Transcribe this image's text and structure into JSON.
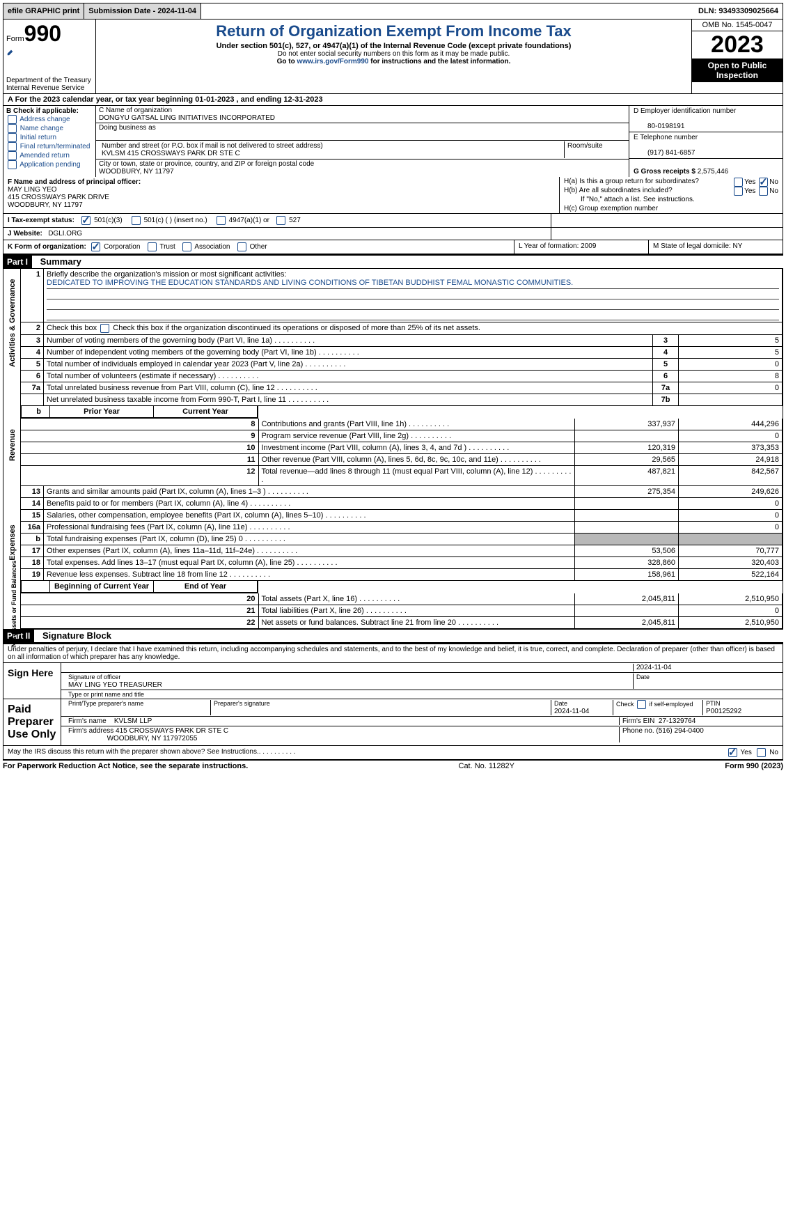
{
  "topbar": {
    "efile": "efile GRAPHIC print",
    "submission": "Submission Date - 2024-11-04",
    "dln": "DLN: 93493309025664"
  },
  "header": {
    "form_label": "Form",
    "form_no": "990",
    "dept": "Department of the Treasury",
    "irs": "Internal Revenue Service",
    "title": "Return of Organization Exempt From Income Tax",
    "sub": "Under section 501(c), 527, or 4947(a)(1) of the Internal Revenue Code (except private foundations)",
    "note1": "Do not enter social security numbers on this form as it may be made public.",
    "note2_pre": "Go to ",
    "note2_link": "www.irs.gov/Form990",
    "note2_post": " for instructions and the latest information.",
    "omb": "OMB No. 1545-0047",
    "year": "2023",
    "pub": "Open to Public Inspection"
  },
  "rowA": "A  For the 2023 calendar year, or tax year beginning 01-01-2023   , and ending 12-31-2023",
  "boxB": {
    "title": "B Check if applicable:",
    "opts": [
      "Address change",
      "Name change",
      "Initial return",
      "Final return/terminated",
      "Amended return",
      "Application pending"
    ]
  },
  "boxC": {
    "name_lbl": "C Name of organization",
    "name": "DONGYU GATSAL LING INITIATIVES INCORPORATED",
    "dba_lbl": "Doing business as",
    "dba": "",
    "street_lbl": "Number and street (or P.O. box if mail is not delivered to street address)",
    "street": "KVLSM 415 CROSSWAYS PARK DR STE C",
    "room_lbl": "Room/suite",
    "city_lbl": "City or town, state or province, country, and ZIP or foreign postal code",
    "city": "WOODBURY, NY  11797"
  },
  "boxD": {
    "lbl": "D Employer identification number",
    "val": "80-0198191"
  },
  "boxE": {
    "lbl": "E Telephone number",
    "val": "(917) 841-6857"
  },
  "boxG": {
    "lbl": "G Gross receipts $",
    "val": "2,575,446"
  },
  "boxF": {
    "lbl": "F  Name and address of principal officer:",
    "name": "MAY LING YEO",
    "addr1": "415 CROSSWAYS PARK DRIVE",
    "addr2": "WOODBURY, NY  11797"
  },
  "boxH": {
    "a": "H(a)  Is this a group return for subordinates?",
    "b": "H(b)  Are all subordinates included?",
    "b_note": "If \"No,\" attach a list. See instructions.",
    "c": "H(c)  Group exemption number",
    "yes": "Yes",
    "no": "No"
  },
  "boxI": {
    "lbl": "I   Tax-exempt status:",
    "o1": "501(c)(3)",
    "o2": "501(c) (  ) (insert no.)",
    "o3": "4947(a)(1) or",
    "o4": "527"
  },
  "boxJ": {
    "lbl": "J   Website:",
    "val": "DGLI.ORG"
  },
  "boxK": {
    "lbl": "K Form of organization:",
    "o1": "Corporation",
    "o2": "Trust",
    "o3": "Association",
    "o4": "Other"
  },
  "boxL": "L Year of formation: 2009",
  "boxM": "M State of legal domicile: NY",
  "part1": {
    "bar": "Part I",
    "title": "Summary"
  },
  "summary": {
    "mission_lbl": "Briefly describe the organization's mission or most significant activities:",
    "mission": "DEDICATED TO IMPROVING THE EDUCATION STANDARDS AND LIVING CONDITIONS OF TIBETAN BUDDHIST FEMAL MONASTIC COMMUNITIES.",
    "l2": "Check this box        if the organization discontinued its operations or disposed of more than 25% of its net assets.",
    "rows_gov": [
      {
        "n": "3",
        "t": "Number of voting members of the governing body (Part VI, line 1a)",
        "lab": "3",
        "v": "5"
      },
      {
        "n": "4",
        "t": "Number of independent voting members of the governing body (Part VI, line 1b)",
        "lab": "4",
        "v": "5"
      },
      {
        "n": "5",
        "t": "Total number of individuals employed in calendar year 2023 (Part V, line 2a)",
        "lab": "5",
        "v": "0"
      },
      {
        "n": "6",
        "t": "Total number of volunteers (estimate if necessary)",
        "lab": "6",
        "v": "8"
      },
      {
        "n": "7a",
        "t": "Total unrelated business revenue from Part VIII, column (C), line 12",
        "lab": "7a",
        "v": "0"
      },
      {
        "n": "",
        "t": "Net unrelated business taxable income from Form 990-T, Part I, line 11",
        "lab": "7b",
        "v": ""
      }
    ],
    "hdr_prior": "Prior Year",
    "hdr_curr": "Current Year",
    "rows_rev": [
      {
        "n": "8",
        "t": "Contributions and grants (Part VIII, line 1h)",
        "p": "337,937",
        "c": "444,296"
      },
      {
        "n": "9",
        "t": "Program service revenue (Part VIII, line 2g)",
        "p": "",
        "c": "0"
      },
      {
        "n": "10",
        "t": "Investment income (Part VIII, column (A), lines 3, 4, and 7d )",
        "p": "120,319",
        "c": "373,353"
      },
      {
        "n": "11",
        "t": "Other revenue (Part VIII, column (A), lines 5, 6d, 8c, 9c, 10c, and 11e)",
        "p": "29,565",
        "c": "24,918"
      },
      {
        "n": "12",
        "t": "Total revenue—add lines 8 through 11 (must equal Part VIII, column (A), line 12)",
        "p": "487,821",
        "c": "842,567"
      }
    ],
    "rows_exp": [
      {
        "n": "13",
        "t": "Grants and similar amounts paid (Part IX, column (A), lines 1–3 )",
        "p": "275,354",
        "c": "249,626"
      },
      {
        "n": "14",
        "t": "Benefits paid to or for members (Part IX, column (A), line 4)",
        "p": "",
        "c": "0"
      },
      {
        "n": "15",
        "t": "Salaries, other compensation, employee benefits (Part IX, column (A), lines 5–10)",
        "p": "",
        "c": "0"
      },
      {
        "n": "16a",
        "t": "Professional fundraising fees (Part IX, column (A), line 11e)",
        "p": "",
        "c": "0"
      },
      {
        "n": "b",
        "t": "Total fundraising expenses (Part IX, column (D), line 25) 0",
        "p": "GREY",
        "c": "GREY"
      },
      {
        "n": "17",
        "t": "Other expenses (Part IX, column (A), lines 11a–11d, 11f–24e)",
        "p": "53,506",
        "c": "70,777"
      },
      {
        "n": "18",
        "t": "Total expenses. Add lines 13–17 (must equal Part IX, column (A), line 25)",
        "p": "328,860",
        "c": "320,403"
      },
      {
        "n": "19",
        "t": "Revenue less expenses. Subtract line 18 from line 12",
        "p": "158,961",
        "c": "522,164"
      }
    ],
    "hdr_beg": "Beginning of Current Year",
    "hdr_end": "End of Year",
    "rows_net": [
      {
        "n": "20",
        "t": "Total assets (Part X, line 16)",
        "p": "2,045,811",
        "c": "2,510,950"
      },
      {
        "n": "21",
        "t": "Total liabilities (Part X, line 26)",
        "p": "",
        "c": "0"
      },
      {
        "n": "22",
        "t": "Net assets or fund balances. Subtract line 21 from line 20",
        "p": "2,045,811",
        "c": "2,510,950"
      }
    ],
    "side": {
      "gov": "Activities & Governance",
      "rev": "Revenue",
      "exp": "Expenses",
      "net": "Net Assets or Fund Balances"
    }
  },
  "part2": {
    "bar": "Part II",
    "title": "Signature Block"
  },
  "sig": {
    "decl": "Under penalties of perjury, I declare that I have examined this return, including accompanying schedules and statements, and to the best of my knowledge and belief, it is true, correct, and complete. Declaration of preparer (other than officer) is based on all information of which preparer has any knowledge.",
    "sign_here": "Sign Here",
    "sig_officer": "Signature of officer",
    "officer": "MAY LING YEO  TREASURER",
    "type_name": "Type or print name and title",
    "date_lbl": "Date",
    "date": "2024-11-04",
    "paid": "Paid Preparer Use Only",
    "prep_name_lbl": "Print/Type preparer's name",
    "prep_sig_lbl": "Preparer's signature",
    "prep_date": "2024-11-04",
    "self_lbl": "Check          if self-employed",
    "ptin_lbl": "PTIN",
    "ptin": "P00125292",
    "firm_name_lbl": "Firm's name",
    "firm_name": "KVLSM LLP",
    "firm_ein_lbl": "Firm's EIN",
    "firm_ein": "27-1329764",
    "firm_addr_lbl": "Firm's address",
    "firm_addr1": "415 CROSSWAYS PARK DR STE C",
    "firm_addr2": "WOODBURY, NY  117972055",
    "phone_lbl": "Phone no.",
    "phone": "(516) 294-0400",
    "discuss": "May the IRS discuss this return with the preparer shown above? See Instructions.",
    "yes": "Yes",
    "no": "No"
  },
  "footer": {
    "l": "For Paperwork Reduction Act Notice, see the separate instructions.",
    "m": "Cat. No. 11282Y",
    "r": "Form 990 (2023)"
  }
}
